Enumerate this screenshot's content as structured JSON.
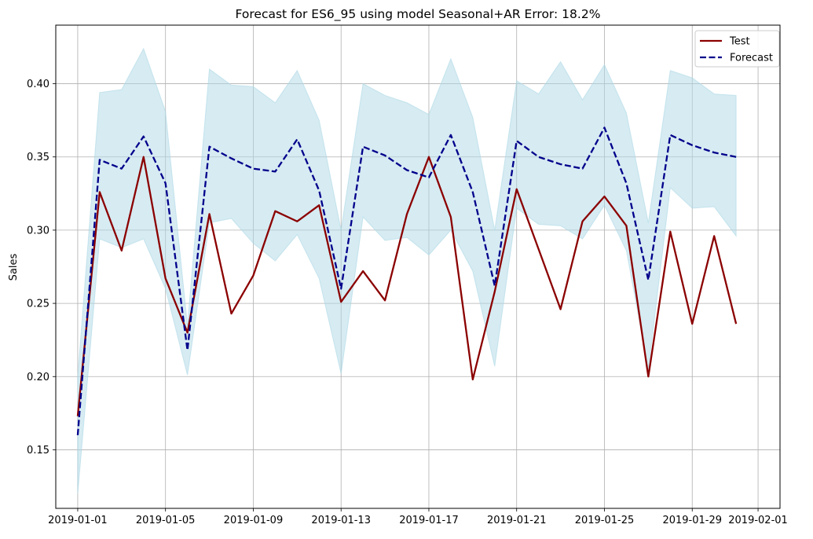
{
  "chart_data": {
    "type": "line",
    "title": "Forecast for ES6_95 using model Seasonal+AR Error: 18.2%",
    "xlabel": "",
    "ylabel": "Sales",
    "x_axis_type": "date",
    "xlim": [
      "2018-12-31",
      "2019-02-02"
    ],
    "ylim": [
      0.11,
      0.44
    ],
    "x_ticks": [
      "2019-01-01",
      "2019-01-05",
      "2019-01-09",
      "2019-01-13",
      "2019-01-17",
      "2019-01-21",
      "2019-01-25",
      "2019-01-29",
      "2019-02-01"
    ],
    "y_ticks": [
      0.15,
      0.2,
      0.25,
      0.3,
      0.35,
      0.4
    ],
    "y_tick_labels": [
      "0.15",
      "0.20",
      "0.25",
      "0.30",
      "0.35",
      "0.40"
    ],
    "grid": true,
    "legend_position": "top-right",
    "dates": [
      "2019-01-01",
      "2019-01-02",
      "2019-01-03",
      "2019-01-04",
      "2019-01-05",
      "2019-01-06",
      "2019-01-07",
      "2019-01-08",
      "2019-01-09",
      "2019-01-10",
      "2019-01-11",
      "2019-01-12",
      "2019-01-13",
      "2019-01-14",
      "2019-01-15",
      "2019-01-16",
      "2019-01-17",
      "2019-01-18",
      "2019-01-19",
      "2019-01-20",
      "2019-01-21",
      "2019-01-22",
      "2019-01-23",
      "2019-01-24",
      "2019-01-25",
      "2019-01-26",
      "2019-01-27",
      "2019-01-28",
      "2019-01-29",
      "2019-01-30",
      "2019-01-31"
    ],
    "series": [
      {
        "name": "Test",
        "color": "#8b0000",
        "style": "solid",
        "values": [
          0.173,
          0.326,
          0.286,
          0.35,
          0.267,
          0.23,
          0.311,
          0.243,
          0.269,
          0.313,
          0.306,
          0.317,
          0.251,
          0.272,
          0.252,
          0.311,
          0.35,
          0.309,
          0.198,
          0.258,
          0.328,
          0.287,
          0.246,
          0.306,
          0.323,
          0.303,
          0.2,
          0.299,
          0.236,
          0.296,
          0.236
        ]
      },
      {
        "name": "Forecast",
        "color": "#00008b",
        "style": "dashed",
        "values": [
          0.16,
          0.348,
          0.342,
          0.364,
          0.332,
          0.218,
          0.357,
          0.349,
          0.342,
          0.34,
          0.362,
          0.327,
          0.26,
          0.357,
          0.351,
          0.341,
          0.336,
          0.365,
          0.326,
          0.262,
          0.361,
          0.35,
          0.345,
          0.342,
          0.37,
          0.332,
          0.266,
          0.365,
          0.358,
          0.353,
          0.35
        ]
      }
    ],
    "confidence_band": {
      "color": "#add8e6",
      "lower": [
        0.12,
        0.294,
        0.288,
        0.294,
        0.26,
        0.201,
        0.305,
        0.308,
        0.291,
        0.279,
        0.297,
        0.267,
        0.202,
        0.309,
        0.293,
        0.295,
        0.283,
        0.3,
        0.272,
        0.207,
        0.315,
        0.304,
        0.303,
        0.294,
        0.317,
        0.286,
        0.205,
        0.329,
        0.315,
        0.316,
        0.296
      ],
      "upper": [
        0.2,
        0.394,
        0.396,
        0.424,
        0.381,
        0.235,
        0.41,
        0.399,
        0.398,
        0.387,
        0.409,
        0.375,
        0.3,
        0.4,
        0.392,
        0.387,
        0.379,
        0.417,
        0.377,
        0.3,
        0.402,
        0.393,
        0.415,
        0.389,
        0.413,
        0.38,
        0.305,
        0.409,
        0.404,
        0.393,
        0.392
      ]
    }
  }
}
